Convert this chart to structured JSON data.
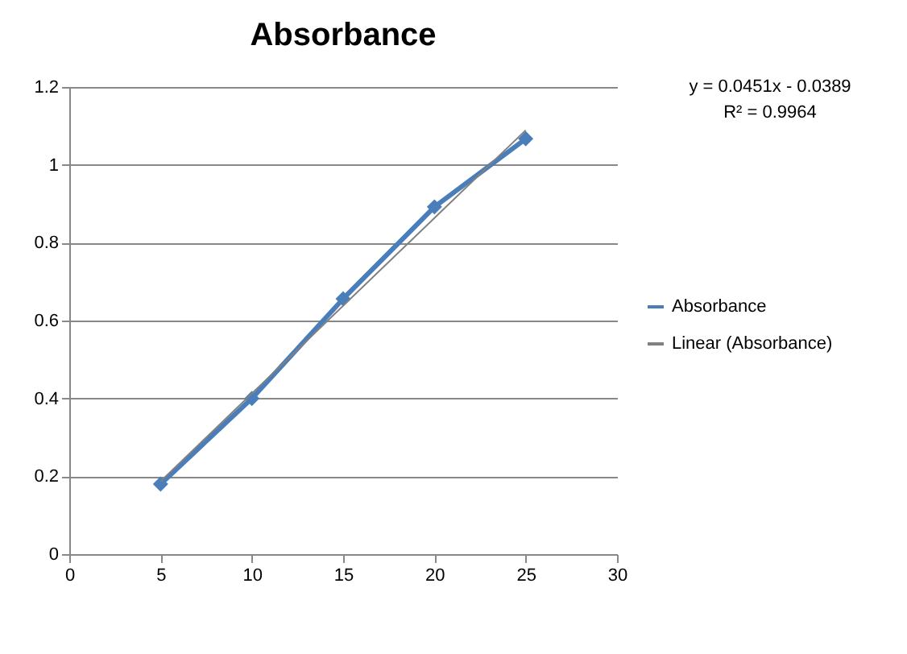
{
  "chart_data": {
    "type": "line",
    "title": "Absorbance",
    "annotations": [
      "y = 0.0451x - 0.0389",
      "R² = 0.9964"
    ],
    "xlim": [
      0,
      30
    ],
    "xticks": [
      0,
      5,
      10,
      15,
      20,
      25,
      30
    ],
    "ylim": [
      0,
      1.2
    ],
    "yticks": [
      0,
      0.2,
      0.4,
      0.6,
      0.8,
      1,
      1.2
    ],
    "grid": "y",
    "legend": "right",
    "series": [
      {
        "name": "Absorbance",
        "color": "#4a7ebb",
        "x": [
          5,
          10,
          15,
          20,
          25
        ],
        "values": [
          0.18,
          0.4,
          0.656,
          0.892,
          1.067
        ],
        "marker": "diamond"
      },
      {
        "name": "Linear (Absorbance)",
        "color": "#808080",
        "x": [
          5,
          25
        ],
        "values": [
          0.187,
          1.089
        ],
        "marker": "none"
      }
    ]
  }
}
